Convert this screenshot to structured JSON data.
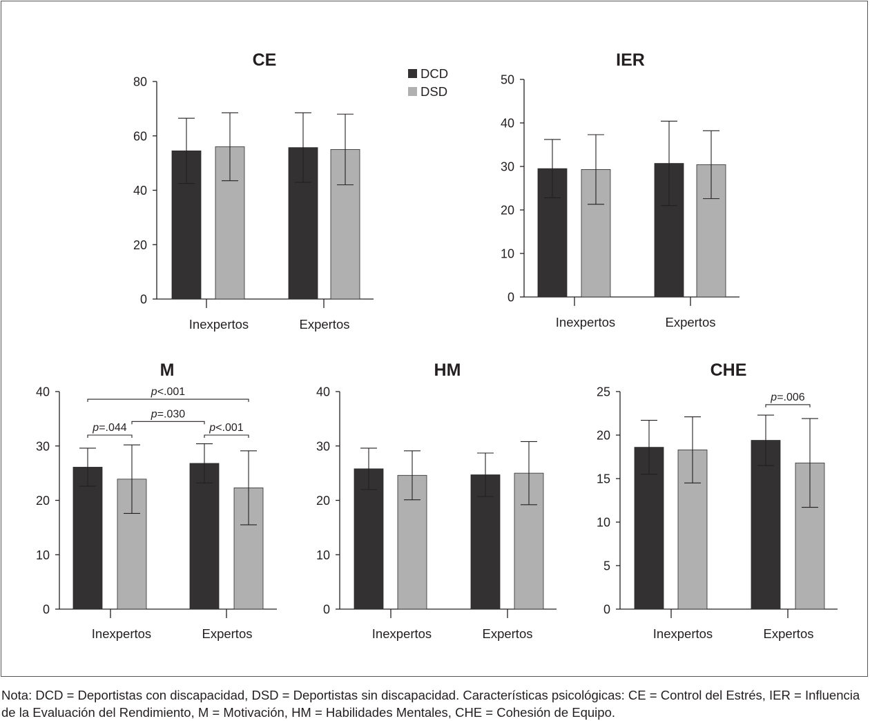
{
  "legend": {
    "items": [
      {
        "label": "DCD",
        "color": "#333132"
      },
      {
        "label": "DSD",
        "color": "#b1b0b0"
      }
    ]
  },
  "chart_data": [
    {
      "type": "bar",
      "title": "CE",
      "categories": [
        "Inexpertos",
        "Expertos"
      ],
      "ylim": [
        0,
        80
      ],
      "yticks": [
        0,
        20,
        40,
        60,
        80
      ],
      "series": [
        {
          "name": "DCD",
          "values": [
            54.5,
            55.7
          ],
          "error": [
            12.0,
            12.8
          ]
        },
        {
          "name": "DSD",
          "values": [
            56.0,
            55.0
          ],
          "error": [
            12.5,
            13.0
          ]
        }
      ],
      "annotations": []
    },
    {
      "type": "bar",
      "title": "IER",
      "categories": [
        "Inexpertos",
        "Expertos"
      ],
      "ylim": [
        0,
        50
      ],
      "yticks": [
        0,
        10,
        20,
        30,
        40,
        50
      ],
      "series": [
        {
          "name": "DCD",
          "values": [
            29.5,
            30.7
          ],
          "error": [
            6.7,
            9.7
          ]
        },
        {
          "name": "DSD",
          "values": [
            29.3,
            30.4
          ],
          "error": [
            8.0,
            7.8
          ]
        }
      ],
      "annotations": []
    },
    {
      "type": "bar",
      "title": "M",
      "categories": [
        "Inexpertos",
        "Expertos"
      ],
      "ylim": [
        0,
        40
      ],
      "yticks": [
        0,
        10,
        20,
        30,
        40
      ],
      "series": [
        {
          "name": "DCD",
          "values": [
            26.1,
            26.8
          ],
          "error": [
            3.5,
            3.6
          ]
        },
        {
          "name": "DSD",
          "values": [
            23.9,
            22.3
          ],
          "error": [
            6.3,
            6.8
          ]
        }
      ],
      "annotations": [
        {
          "label": "p<.001",
          "from": [
            0,
            0
          ],
          "to": [
            1,
            1
          ],
          "y": 38.6
        },
        {
          "label": "p=.044",
          "from": [
            0,
            0
          ],
          "to": [
            0,
            1
          ],
          "y": 32.0
        },
        {
          "label": "p=.030",
          "from": [
            0,
            1
          ],
          "to": [
            1,
            0
          ],
          "y": 34.5
        },
        {
          "label": "p<.001",
          "from": [
            1,
            0
          ],
          "to": [
            1,
            1
          ],
          "y": 32.0
        }
      ]
    },
    {
      "type": "bar",
      "title": "HM",
      "categories": [
        "Inexpertos",
        "Expertos"
      ],
      "ylim": [
        0,
        40
      ],
      "yticks": [
        0,
        10,
        20,
        30,
        40
      ],
      "series": [
        {
          "name": "DCD",
          "values": [
            25.8,
            24.7
          ],
          "error": [
            3.8,
            4.0
          ]
        },
        {
          "name": "DSD",
          "values": [
            24.6,
            25.0
          ],
          "error": [
            4.5,
            5.8
          ]
        }
      ],
      "annotations": []
    },
    {
      "type": "bar",
      "title": "CHE",
      "categories": [
        "Inexpertos",
        "Expertos"
      ],
      "ylim": [
        0,
        25
      ],
      "yticks": [
        0,
        5,
        10,
        15,
        20,
        25
      ],
      "series": [
        {
          "name": "DCD",
          "values": [
            18.6,
            19.4
          ],
          "error": [
            3.1,
            2.9
          ]
        },
        {
          "name": "DSD",
          "values": [
            18.3,
            16.8
          ],
          "error": [
            3.8,
            5.1
          ]
        }
      ],
      "annotations": [
        {
          "label": "p=.006",
          "from": [
            1,
            0
          ],
          "to": [
            1,
            1
          ],
          "y": 23.5
        }
      ]
    }
  ],
  "note": "Nota: DCD = Deportistas con discapacidad, DSD = Deportistas sin discapacidad. Características psicológicas: CE = Control del Estrés, IER = Influencia de la Evaluación del Rendimiento, M = Motivación, HM = Habilidades Mentales, CHE = Cohesión de Equipo."
}
